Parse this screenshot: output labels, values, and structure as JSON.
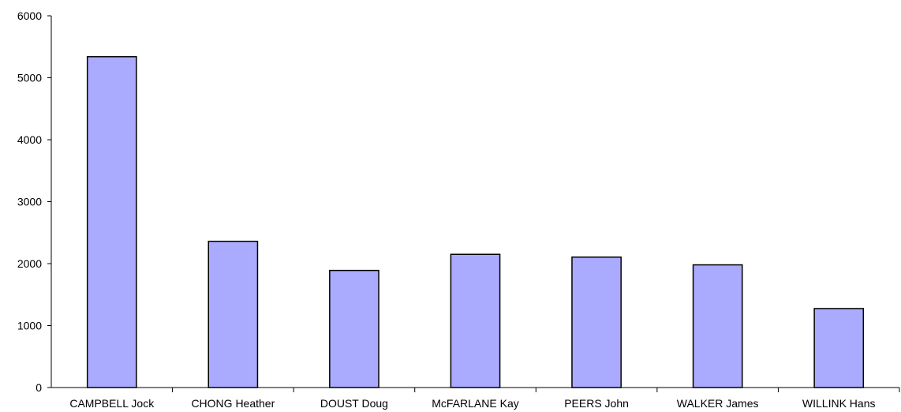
{
  "chart_data": {
    "type": "bar",
    "title": "",
    "xlabel": "",
    "ylabel": "",
    "categories": [
      "CAMPBELL Jock",
      "CHONG Heather",
      "DOUST Doug",
      "McFARLANE Kay",
      "PEERS John",
      "WALKER James",
      "WILLINK Hans"
    ],
    "values": [
      5340,
      2360,
      1890,
      2150,
      2105,
      1980,
      1275
    ],
    "ylim": [
      0,
      6000
    ],
    "yticks": [
      0,
      1000,
      2000,
      3000,
      4000,
      5000,
      6000
    ],
    "grid": false,
    "legend": "none",
    "bar_color": "#aaaaff",
    "bar_edge_color": "#000000"
  }
}
